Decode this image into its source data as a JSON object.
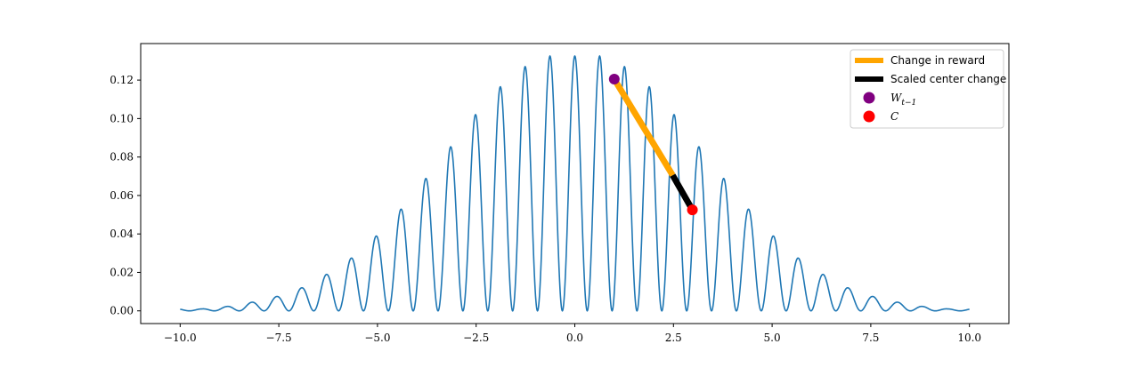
{
  "chart_data": {
    "type": "line",
    "xlim": [
      -11.0,
      11.0
    ],
    "ylim": [
      -0.0066,
      0.139
    ],
    "x_ticks": [
      -10.0,
      -7.5,
      -5.0,
      -2.5,
      0.0,
      2.5,
      5.0,
      7.5,
      10.0
    ],
    "x_tick_labels": [
      "−10.0",
      "−7.5",
      "−5.0",
      "−2.5",
      "0.0",
      "2.5",
      "5.0",
      "7.5",
      "10.0"
    ],
    "y_ticks": [
      0.0,
      0.02,
      0.04,
      0.06,
      0.08,
      0.1,
      0.12
    ],
    "y_tick_labels": [
      "0.00",
      "0.02",
      "0.04",
      "0.06",
      "0.08",
      "0.10",
      "0.12"
    ],
    "grid": false,
    "legend_placement": "top-right",
    "curve": {
      "x_range": [
        -10.0,
        10.0
      ],
      "peaks_x": [
        -9.45,
        -8.81,
        -8.18,
        -7.55,
        -6.92,
        -6.29,
        -5.66,
        -5.03,
        -4.4,
        -3.77,
        -3.14,
        -2.52,
        -1.89,
        -1.26,
        -0.63,
        0.0,
        0.63,
        1.26,
        1.89,
        2.52,
        3.14,
        3.77,
        4.4,
        5.03,
        5.66,
        6.29,
        6.92,
        7.55,
        8.18,
        8.81,
        9.45
      ],
      "peaks_y": [
        0.001,
        0.0023,
        0.0045,
        0.0075,
        0.012,
        0.019,
        0.0275,
        0.039,
        0.053,
        0.069,
        0.0855,
        0.102,
        0.1165,
        0.127,
        0.1325,
        0.1325,
        0.1325,
        0.127,
        0.1165,
        0.102,
        0.0855,
        0.069,
        0.053,
        0.039,
        0.0275,
        0.019,
        0.012,
        0.0075,
        0.0045,
        0.0023,
        0.001
      ],
      "trough_spacing": 0.63,
      "color": "#1f77b4"
    },
    "series": [
      {
        "name": "Change in reward",
        "color": "#ffa500",
        "x": [
          1.0,
          2.48
        ],
        "y": [
          0.1205,
          0.0705
        ]
      },
      {
        "name": "Scaled center change",
        "color": "#000000",
        "x": [
          2.48,
          2.98
        ],
        "y": [
          0.0705,
          0.0525
        ]
      },
      {
        "name": "W_{t-1}",
        "type": "scatter",
        "color": "#800080",
        "x": [
          1.0
        ],
        "y": [
          0.1205
        ]
      },
      {
        "name": "C",
        "type": "scatter",
        "color": "#ff0000",
        "x": [
          2.98
        ],
        "y": [
          0.0525
        ]
      }
    ],
    "legend": {
      "entries": [
        {
          "label": "Change in reward",
          "marker": "line",
          "color": "#ffa500"
        },
        {
          "label": "Scaled center change",
          "marker": "line",
          "color": "#000000"
        },
        {
          "label": "W",
          "subscript": "t−1",
          "marker": "dot",
          "color": "#800080"
        },
        {
          "label": "C",
          "marker": "dot",
          "color": "#ff0000"
        }
      ]
    }
  }
}
